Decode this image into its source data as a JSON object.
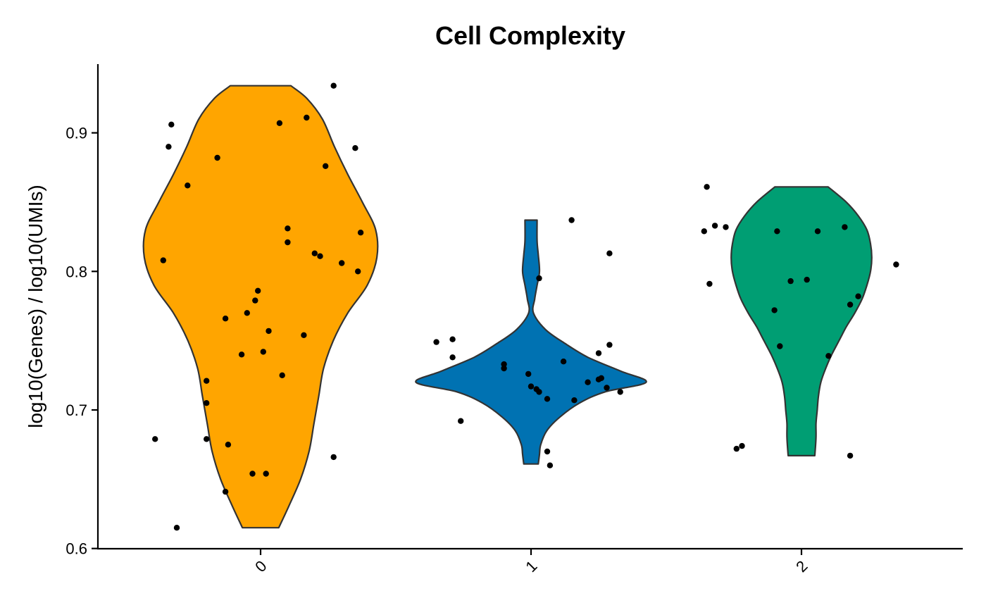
{
  "chart_data": {
    "type": "violin",
    "title": "Cell Complexity",
    "xlabel": "",
    "ylabel": "log10(Genes) / log10(UMIs)",
    "ylim": [
      0.6,
      0.95
    ],
    "yticks": [
      0.6,
      0.7,
      0.8,
      0.9
    ],
    "ytick_labels": [
      "0.6",
      "0.7",
      "0.8",
      "0.9"
    ],
    "categories": [
      "0",
      "1",
      "2"
    ],
    "x_tick_rotation": 45,
    "grid": false,
    "legend": "none",
    "series": [
      {
        "category": "0",
        "color": "#FFA500",
        "range": [
          0.615,
          0.934
        ],
        "density_profile": [
          [
            0.615,
            0.15
          ],
          [
            0.63,
            0.23
          ],
          [
            0.65,
            0.33
          ],
          [
            0.67,
            0.4
          ],
          [
            0.69,
            0.44
          ],
          [
            0.71,
            0.48
          ],
          [
            0.73,
            0.52
          ],
          [
            0.75,
            0.6
          ],
          [
            0.77,
            0.72
          ],
          [
            0.79,
            0.88
          ],
          [
            0.81,
            0.96
          ],
          [
            0.83,
            0.95
          ],
          [
            0.85,
            0.84
          ],
          [
            0.87,
            0.72
          ],
          [
            0.89,
            0.61
          ],
          [
            0.91,
            0.51
          ],
          [
            0.925,
            0.38
          ],
          [
            0.934,
            0.25
          ]
        ],
        "points": [
          [
            -0.33,
            0.906
          ],
          [
            -0.34,
            0.89
          ],
          [
            -0.27,
            0.862
          ],
          [
            -0.16,
            0.882
          ],
          [
            -0.36,
            0.808
          ],
          [
            0.07,
            0.907
          ],
          [
            0.17,
            0.911
          ],
          [
            0.27,
            0.934
          ],
          [
            0.35,
            0.889
          ],
          [
            0.24,
            0.876
          ],
          [
            0.37,
            0.828
          ],
          [
            0.1,
            0.831
          ],
          [
            0.1,
            0.821
          ],
          [
            0.2,
            0.813
          ],
          [
            0.22,
            0.811
          ],
          [
            0.3,
            0.806
          ],
          [
            0.36,
            0.8
          ],
          [
            -0.01,
            0.786
          ],
          [
            -0.02,
            0.779
          ],
          [
            -0.05,
            0.77
          ],
          [
            -0.13,
            0.766
          ],
          [
            0.03,
            0.757
          ],
          [
            0.16,
            0.754
          ],
          [
            -0.07,
            0.74
          ],
          [
            0.01,
            0.742
          ],
          [
            0.08,
            0.725
          ],
          [
            -0.2,
            0.721
          ],
          [
            -0.2,
            0.705
          ],
          [
            -0.39,
            0.679
          ],
          [
            -0.2,
            0.679
          ],
          [
            -0.12,
            0.675
          ],
          [
            0.27,
            0.666
          ],
          [
            -0.03,
            0.654
          ],
          [
            0.02,
            0.654
          ],
          [
            -0.13,
            0.641
          ],
          [
            -0.31,
            0.615
          ]
        ]
      },
      {
        "category": "1",
        "color": "#0072B2",
        "range": [
          0.661,
          0.837
        ],
        "density_profile": [
          [
            0.661,
            0.06
          ],
          [
            0.668,
            0.07
          ],
          [
            0.675,
            0.08
          ],
          [
            0.685,
            0.13
          ],
          [
            0.695,
            0.24
          ],
          [
            0.705,
            0.4
          ],
          [
            0.713,
            0.61
          ],
          [
            0.72,
            0.95
          ],
          [
            0.728,
            0.74
          ],
          [
            0.738,
            0.47
          ],
          [
            0.748,
            0.28
          ],
          [
            0.758,
            0.12
          ],
          [
            0.77,
            0.02
          ],
          [
            0.78,
            0.03
          ],
          [
            0.79,
            0.05
          ],
          [
            0.8,
            0.07
          ],
          [
            0.812,
            0.06
          ],
          [
            0.822,
            0.05
          ],
          [
            0.837,
            0.05
          ]
        ],
        "points": [
          [
            1.15,
            0.837
          ],
          [
            1.29,
            0.813
          ],
          [
            1.03,
            0.795
          ],
          [
            0.71,
            0.751
          ],
          [
            0.65,
            0.749
          ],
          [
            1.29,
            0.747
          ],
          [
            1.25,
            0.741
          ],
          [
            0.71,
            0.738
          ],
          [
            1.12,
            0.735
          ],
          [
            0.9,
            0.733
          ],
          [
            0.9,
            0.73
          ],
          [
            0.99,
            0.726
          ],
          [
            1.26,
            0.723
          ],
          [
            1.25,
            0.722
          ],
          [
            1.21,
            0.72
          ],
          [
            1.0,
            0.717
          ],
          [
            1.02,
            0.715
          ],
          [
            1.03,
            0.713
          ],
          [
            1.33,
            0.713
          ],
          [
            1.28,
            0.716
          ],
          [
            1.06,
            0.708
          ],
          [
            1.16,
            0.707
          ],
          [
            0.74,
            0.692
          ],
          [
            1.06,
            0.67
          ],
          [
            1.07,
            0.66
          ]
        ]
      },
      {
        "category": "2",
        "color": "#009E73",
        "range": [
          0.667,
          0.861
        ],
        "density_profile": [
          [
            0.667,
            0.11
          ],
          [
            0.68,
            0.12
          ],
          [
            0.69,
            0.12
          ],
          [
            0.7,
            0.13
          ],
          [
            0.71,
            0.14
          ],
          [
            0.72,
            0.16
          ],
          [
            0.73,
            0.2
          ],
          [
            0.74,
            0.25
          ],
          [
            0.75,
            0.31
          ],
          [
            0.76,
            0.37
          ],
          [
            0.77,
            0.44
          ],
          [
            0.78,
            0.5
          ],
          [
            0.79,
            0.54
          ],
          [
            0.8,
            0.57
          ],
          [
            0.81,
            0.58
          ],
          [
            0.82,
            0.57
          ],
          [
            0.83,
            0.54
          ],
          [
            0.84,
            0.47
          ],
          [
            0.85,
            0.37
          ],
          [
            0.861,
            0.22
          ]
        ],
        "points": [
          [
            1.65,
            0.861
          ],
          [
            1.64,
            0.829
          ],
          [
            1.68,
            0.833
          ],
          [
            1.72,
            0.832
          ],
          [
            1.91,
            0.829
          ],
          [
            2.06,
            0.829
          ],
          [
            2.16,
            0.832
          ],
          [
            2.35,
            0.805
          ],
          [
            1.66,
            0.791
          ],
          [
            1.96,
            0.793
          ],
          [
            2.02,
            0.794
          ],
          [
            1.9,
            0.772
          ],
          [
            2.21,
            0.782
          ],
          [
            2.18,
            0.776
          ],
          [
            1.92,
            0.746
          ],
          [
            2.1,
            0.739
          ],
          [
            1.76,
            0.672
          ],
          [
            1.78,
            0.674
          ],
          [
            2.18,
            0.667
          ]
        ]
      }
    ]
  }
}
